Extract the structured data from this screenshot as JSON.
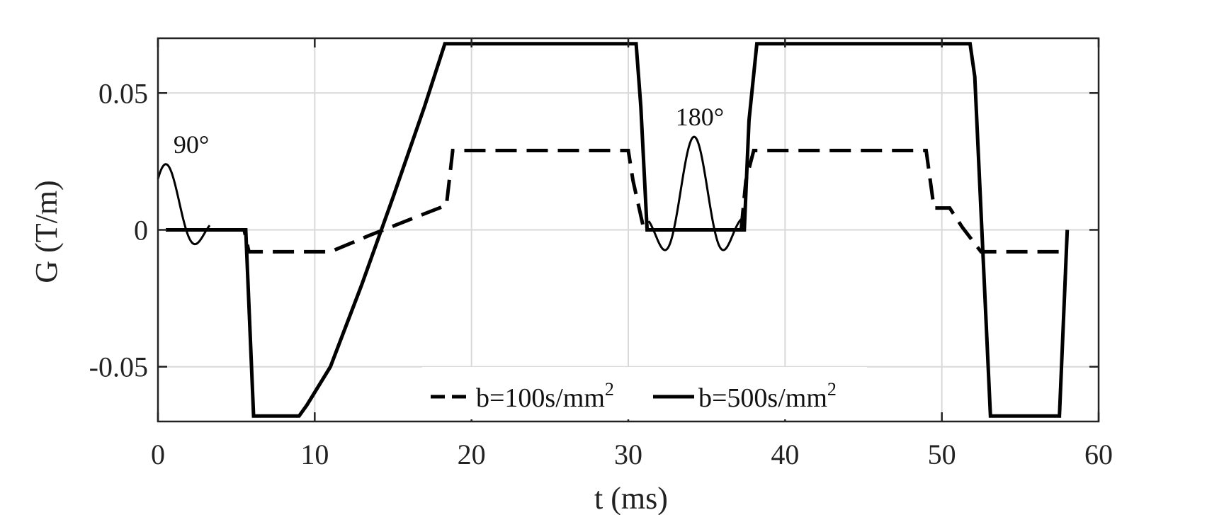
{
  "chart_data": {
    "type": "line",
    "title": "",
    "xlabel": "t (ms)",
    "ylabel": "G (T/m)",
    "xlim": [
      0,
      60
    ],
    "ylim": [
      -0.07,
      0.07
    ],
    "xticks": [
      0,
      10,
      20,
      30,
      40,
      50,
      60
    ],
    "xtick_labels": [
      "0",
      "10",
      "20",
      "30",
      "40",
      "50",
      "60"
    ],
    "yticks": [
      -0.05,
      0,
      0.05
    ],
    "ytick_labels": [
      "-0.05",
      "0",
      "0.05"
    ],
    "grid": true,
    "legend": {
      "placement": "bottom-center",
      "orientation": "horizontal"
    },
    "series": [
      {
        "name": "b=100s/mm",
        "name_sup": "2",
        "style": "dashed",
        "color": "#000000",
        "x": [
          0.5,
          5.5,
          5.8,
          11,
          13.5,
          17.5,
          18.4,
          18.8,
          30,
          30.3,
          31,
          31.5,
          37.2,
          37.5,
          38,
          49,
          49.5,
          50.5,
          51.3,
          52.5,
          58
        ],
        "y": [
          0,
          0,
          -0.008,
          -0.008,
          -0.002,
          0.007,
          0.009,
          0.029,
          0.029,
          0.018,
          0,
          0,
          0,
          0.018,
          0.029,
          0.029,
          0.008,
          0.008,
          0.001,
          -0.008,
          -0.008
        ]
      },
      {
        "name": "b=500s/mm",
        "name_sup": "2",
        "style": "solid",
        "color": "#000000",
        "x": [
          0.5,
          5.6,
          6.1,
          9,
          9.5,
          11,
          13,
          15,
          17,
          18.3,
          30.5,
          30.8,
          31.2,
          37.4,
          37.7,
          38.2,
          51.8,
          52.1,
          53.1,
          57.5,
          58
        ],
        "y": [
          0,
          0,
          -0.068,
          -0.068,
          -0.064,
          -0.05,
          -0.02,
          0.012,
          0.045,
          0.068,
          0.068,
          0.045,
          0,
          0,
          0.04,
          0.068,
          0.068,
          0.056,
          -0.068,
          -0.068,
          0
        ]
      }
    ],
    "rf_pulses": [
      {
        "label": "90°",
        "center_ms": 0.5,
        "amplitude": 0.024,
        "width_ms": 1.3,
        "span_ms": [
          0,
          3.3
        ]
      },
      {
        "label": "180°",
        "center_ms": 34.2,
        "amplitude": 0.034,
        "width_ms": 1.3,
        "span_ms": [
          31.3,
          37.2
        ]
      }
    ]
  }
}
